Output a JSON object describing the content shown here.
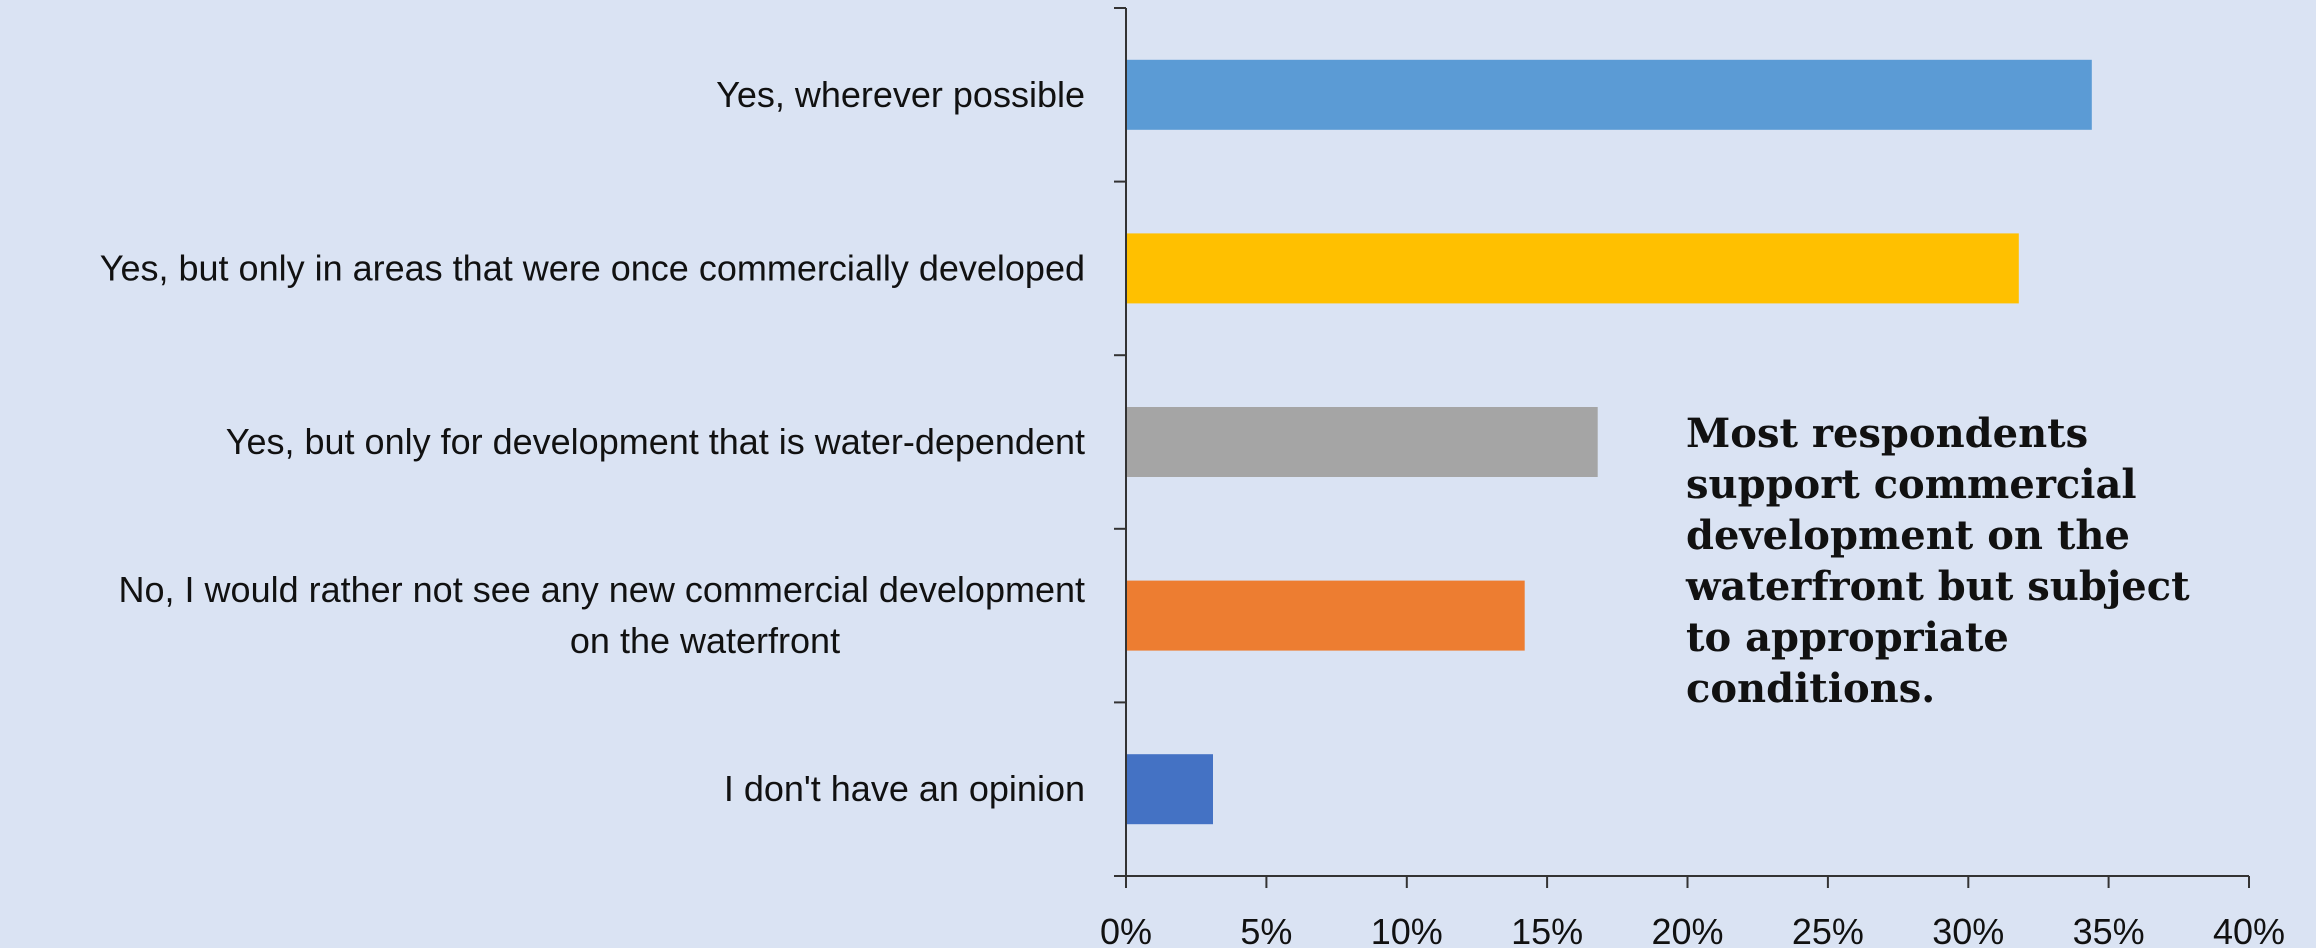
{
  "chart_data": {
    "type": "bar",
    "orientation": "horizontal",
    "categories": [
      [
        "Yes, wherever possible"
      ],
      [
        "Yes, but only in areas that were once commercially developed"
      ],
      [
        "Yes, but only for development that is water-dependent"
      ],
      [
        "No, I would rather not see any new commercial development",
        "on the waterfront"
      ],
      [
        "I don't have an opinion"
      ]
    ],
    "values": [
      34.4,
      31.8,
      16.8,
      14.2,
      3.1
    ],
    "colors": [
      "#5b9bd5",
      "#ffc000",
      "#a5a5a5",
      "#ed7d31",
      "#4472c4"
    ],
    "xlim": [
      0,
      40
    ],
    "xticks": [
      "0%",
      "5%",
      "10%",
      "15%",
      "20%",
      "25%",
      "30%",
      "35%",
      "40%"
    ],
    "grid": false,
    "annotation": "Most respondents support commercial development on the waterfront but subject to appropriate conditions."
  },
  "background": "#dae3f3"
}
